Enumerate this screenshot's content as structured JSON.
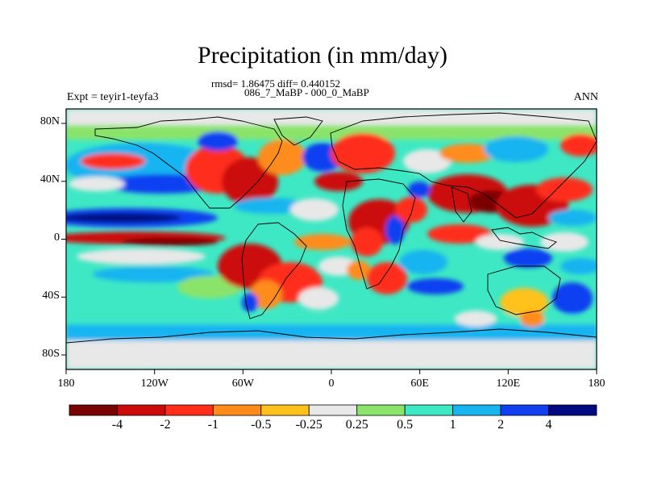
{
  "title": "Precipitation (in mm/day)",
  "subtitle_stats": "rmsd= 1.86475 diff= 0.440152",
  "subtitle_expt": "086_7_MaBP - 000_0_MaBP",
  "left_label": "Expt = teyir1-teyfa3",
  "right_label": "ANN",
  "map": {
    "projection": "cylindrical-equidistant",
    "lon_range": [
      -180,
      180
    ],
    "lat_range": [
      -90,
      90
    ],
    "x_ticks": [
      "180",
      "120W",
      "60W",
      "0",
      "60E",
      "120E",
      "180"
    ],
    "y_ticks": [
      "80N",
      "40N",
      "0",
      "40S",
      "80S"
    ],
    "variable": "precipitation difference",
    "units": "mm/day",
    "overlay": "coastlines"
  },
  "colorbar": {
    "orientation": "horizontal",
    "labels": [
      "-4",
      "-2",
      "-1",
      "-0.5",
      "-0.25",
      "0.25",
      "0.5",
      "1",
      "2",
      "4"
    ],
    "colors": [
      "#7a0403",
      "#cc0a0a",
      "#ff2d1a",
      "#ff8c1a",
      "#ffc21a",
      "#e8e8e8",
      "#8be46a",
      "#3ee8c4",
      "#18b4f0",
      "#1040f0",
      "#000a80"
    ]
  }
}
